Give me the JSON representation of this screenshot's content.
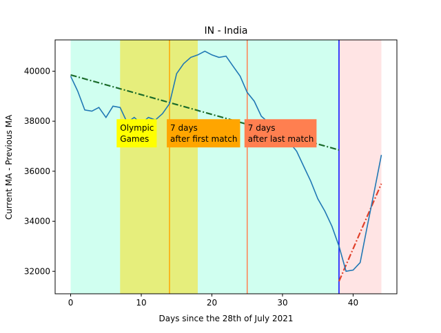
{
  "chart_data": {
    "type": "line",
    "title": "IN - India",
    "xlabel": "Days since the 28th of July 2021",
    "ylabel": "Current MA - Previous MA",
    "xlim": [
      -2.2,
      46.2
    ],
    "ylim": [
      31100,
      41250
    ],
    "xticks": [
      0,
      10,
      20,
      30,
      40
    ],
    "yticks": [
      32000,
      34000,
      36000,
      38000,
      40000
    ],
    "grid": false,
    "colors": {
      "series": "#1f77b4",
      "trend_before": "#1a6b2a",
      "trend_after": "#e0402a",
      "region_main": "#d0fff0",
      "region_olympics": "#e6ee7c",
      "region_after": "#ffe4e4",
      "line_first_match": "#ffa500",
      "line_last_match": "#ff7f50",
      "line_end": "#0000ff"
    },
    "regions": [
      {
        "from": 0,
        "to": 38,
        "color": "#d0fff0"
      },
      {
        "from": 7,
        "to": 18,
        "color": "#e6ee7c"
      },
      {
        "from": 38,
        "to": 44,
        "color": "#ffe4e4"
      }
    ],
    "vlines": [
      {
        "x": 14,
        "color": "#ffa500"
      },
      {
        "x": 25,
        "color": "#ff7f50"
      },
      {
        "x": 38,
        "color": "#0000ff"
      }
    ],
    "annotations": [
      {
        "lines": [
          "Olympic",
          "Games"
        ],
        "x": 7,
        "y": 37970,
        "box_color": "#ffff00"
      },
      {
        "lines": [
          "7 days",
          "after first match"
        ],
        "x": 14.1,
        "y": 37970,
        "box_color": "#ffa500"
      },
      {
        "lines": [
          "7 days",
          "after last match"
        ],
        "x": 25.1,
        "y": 37970,
        "box_color": "#ff7f50"
      }
    ],
    "series": [
      {
        "x": [
          0,
          1,
          2,
          3,
          4,
          5,
          6,
          7,
          8,
          9,
          10,
          11,
          12,
          13,
          14,
          15,
          16,
          17,
          18,
          19,
          20,
          21,
          22,
          23,
          24,
          25,
          26,
          27,
          28,
          29,
          30,
          31,
          32,
          33,
          34,
          35,
          36,
          37,
          38,
          39,
          40,
          41,
          42,
          43,
          44
        ],
        "values": [
          39800,
          39200,
          38450,
          38400,
          38550,
          38150,
          38600,
          38550,
          37950,
          38150,
          37900,
          38150,
          38050,
          38300,
          38700,
          39900,
          40300,
          40550,
          40650,
          40800,
          40650,
          40550,
          40600,
          40200,
          39800,
          39150,
          38800,
          38200,
          37950,
          37800,
          37500,
          37150,
          36800,
          36200,
          35600,
          34900,
          34400,
          33800,
          33000,
          32000,
          32050,
          32350,
          33800,
          35200,
          36650
        ],
        "color": "#1f77b4"
      }
    ],
    "trend_lines": [
      {
        "x": [
          0,
          38
        ],
        "values": [
          39850,
          36850
        ],
        "color": "#1a6b2a"
      },
      {
        "x": [
          38,
          44
        ],
        "values": [
          31600,
          35500
        ],
        "color": "#e0402a"
      }
    ]
  }
}
